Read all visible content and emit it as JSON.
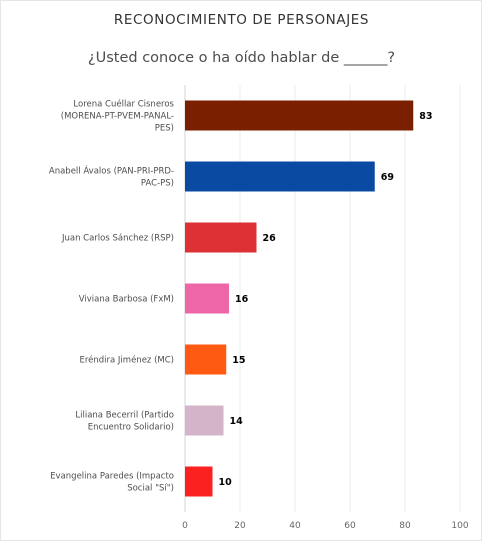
{
  "chart_data": {
    "type": "bar",
    "orientation": "horizontal",
    "title": "RECONOCIMIENTO DE PERSONAJES",
    "subtitle": "¿Usted conoce o ha oído hablar de ______?",
    "categories": [
      [
        "Lorena Cuéllar Cisneros",
        "(MORENA-PT-PVEM-PANAL-",
        "PES)"
      ],
      [
        "Anabell Ávalos (PAN-PRI-PRD-",
        "PAC-PS)"
      ],
      [
        "Juan Carlos Sánchez (RSP)"
      ],
      [
        "Viviana Barbosa (FxM)"
      ],
      [
        "Eréndira Jiménez (MC)"
      ],
      [
        "Liliana Becerril (Partido",
        "Encuentro Solidario)"
      ],
      [
        "Evangelina Paredes (Impacto",
        "Social \"Sí\")"
      ]
    ],
    "values": [
      83,
      69,
      26,
      16,
      15,
      14,
      10
    ],
    "colors": [
      "#7a2000",
      "#0a4aa3",
      "#dc3236",
      "#ee65a8",
      "#fe5a12",
      "#d4b4c8",
      "#fb2121"
    ],
    "xlim": [
      0,
      100
    ],
    "xticks": [
      0,
      20,
      40,
      60,
      80,
      100
    ],
    "grid": true,
    "legend": "none"
  }
}
